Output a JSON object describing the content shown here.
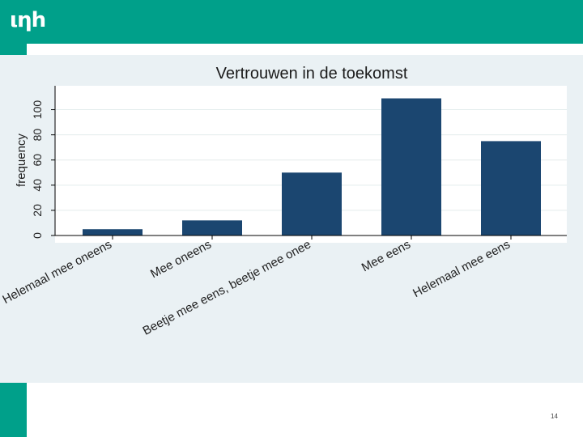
{
  "header": {
    "logo_text": "ιηh",
    "background_color": "#00a08a"
  },
  "slide": {
    "page_number": "14"
  },
  "chart_data": {
    "type": "bar",
    "title": "Vertrouwen in de toekomst",
    "xlabel": "",
    "ylabel": "frequency",
    "categories": [
      "Helemaal mee oneens",
      "Mee oneens",
      "Beetje mee eens, beetje mee onee",
      "Mee eens",
      "Helemaal mee eens"
    ],
    "values": [
      5,
      12,
      50,
      109,
      75
    ],
    "yticks": [
      0,
      20,
      40,
      60,
      80,
      100
    ],
    "ylim": [
      0,
      119
    ],
    "grid": true,
    "bar_color": "#1b4670",
    "background_color": "#eaf1f4"
  }
}
